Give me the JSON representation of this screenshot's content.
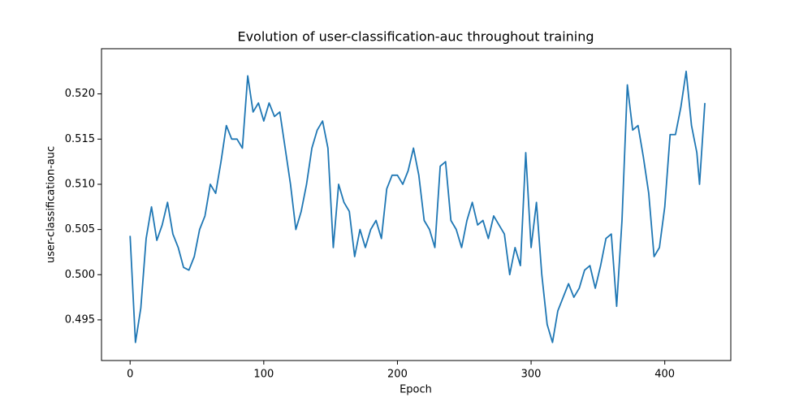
{
  "chart_data": {
    "type": "line",
    "title": "Evolution of user-classification-auc throughout training",
    "xlabel": "Epoch",
    "ylabel": "user-classification-auc",
    "x": [
      0,
      4,
      8,
      12,
      16,
      20,
      24,
      28,
      32,
      36,
      40,
      44,
      48,
      52,
      56,
      60,
      64,
      68,
      72,
      76,
      80,
      84,
      88,
      92,
      96,
      100,
      104,
      108,
      112,
      116,
      120,
      124,
      128,
      132,
      136,
      140,
      144,
      148,
      152,
      156,
      160,
      164,
      168,
      172,
      176,
      180,
      184,
      188,
      192,
      196,
      200,
      204,
      208,
      212,
      216,
      220,
      224,
      228,
      232,
      236,
      240,
      244,
      248,
      252,
      256,
      260,
      264,
      268,
      272,
      276,
      280,
      284,
      288,
      292,
      296,
      300,
      304,
      308,
      312,
      316,
      320,
      324,
      328,
      332,
      336,
      340,
      344,
      348,
      352,
      356,
      360,
      364,
      368,
      372,
      376,
      380,
      384,
      388,
      392,
      396,
      400,
      404,
      408,
      412,
      416,
      420,
      424,
      426,
      430
    ],
    "series": [
      {
        "name": "user-classification-auc",
        "color": "#1f77b4",
        "values": [
          0.5043,
          0.4925,
          0.4963,
          0.504,
          0.5075,
          0.5038,
          0.5055,
          0.508,
          0.5045,
          0.503,
          0.5008,
          0.5005,
          0.502,
          0.505,
          0.5065,
          0.51,
          0.509,
          0.5125,
          0.5165,
          0.515,
          0.515,
          0.514,
          0.522,
          0.518,
          0.519,
          0.517,
          0.519,
          0.5175,
          0.518,
          0.514,
          0.51,
          0.505,
          0.507,
          0.51,
          0.514,
          0.516,
          0.517,
          0.514,
          0.503,
          0.51,
          0.508,
          0.507,
          0.502,
          0.505,
          0.503,
          0.505,
          0.506,
          0.504,
          0.5095,
          0.511,
          0.511,
          0.51,
          0.5115,
          0.514,
          0.511,
          0.506,
          0.505,
          0.503,
          0.512,
          0.5125,
          0.506,
          0.505,
          0.503,
          0.506,
          0.508,
          0.5055,
          0.506,
          0.504,
          0.5065,
          0.5055,
          0.5045,
          0.5,
          0.503,
          0.501,
          0.5135,
          0.503,
          0.508,
          0.5,
          0.4945,
          0.4925,
          0.496,
          0.4975,
          0.499,
          0.4975,
          0.4985,
          0.5005,
          0.501,
          0.4985,
          0.501,
          0.504,
          0.5045,
          0.4965,
          0.506,
          0.521,
          0.516,
          0.5165,
          0.513,
          0.509,
          0.502,
          0.503,
          0.5075,
          0.5155,
          0.5155,
          0.5185,
          0.5225,
          0.5165,
          0.5135,
          0.51,
          0.519
        ]
      }
    ],
    "xlim": [
      -21.4,
      449.4
    ],
    "ylim": [
      0.4905,
      0.525
    ],
    "xticks": [
      0,
      100,
      200,
      300,
      400
    ],
    "yticks": [
      0.495,
      {
        "value": 0.5,
        "label": "0.500"
      },
      0.505,
      {
        "value": 0.51,
        "label": "0.510"
      },
      0.515,
      {
        "value": 0.52,
        "label": "0.520"
      }
    ]
  }
}
